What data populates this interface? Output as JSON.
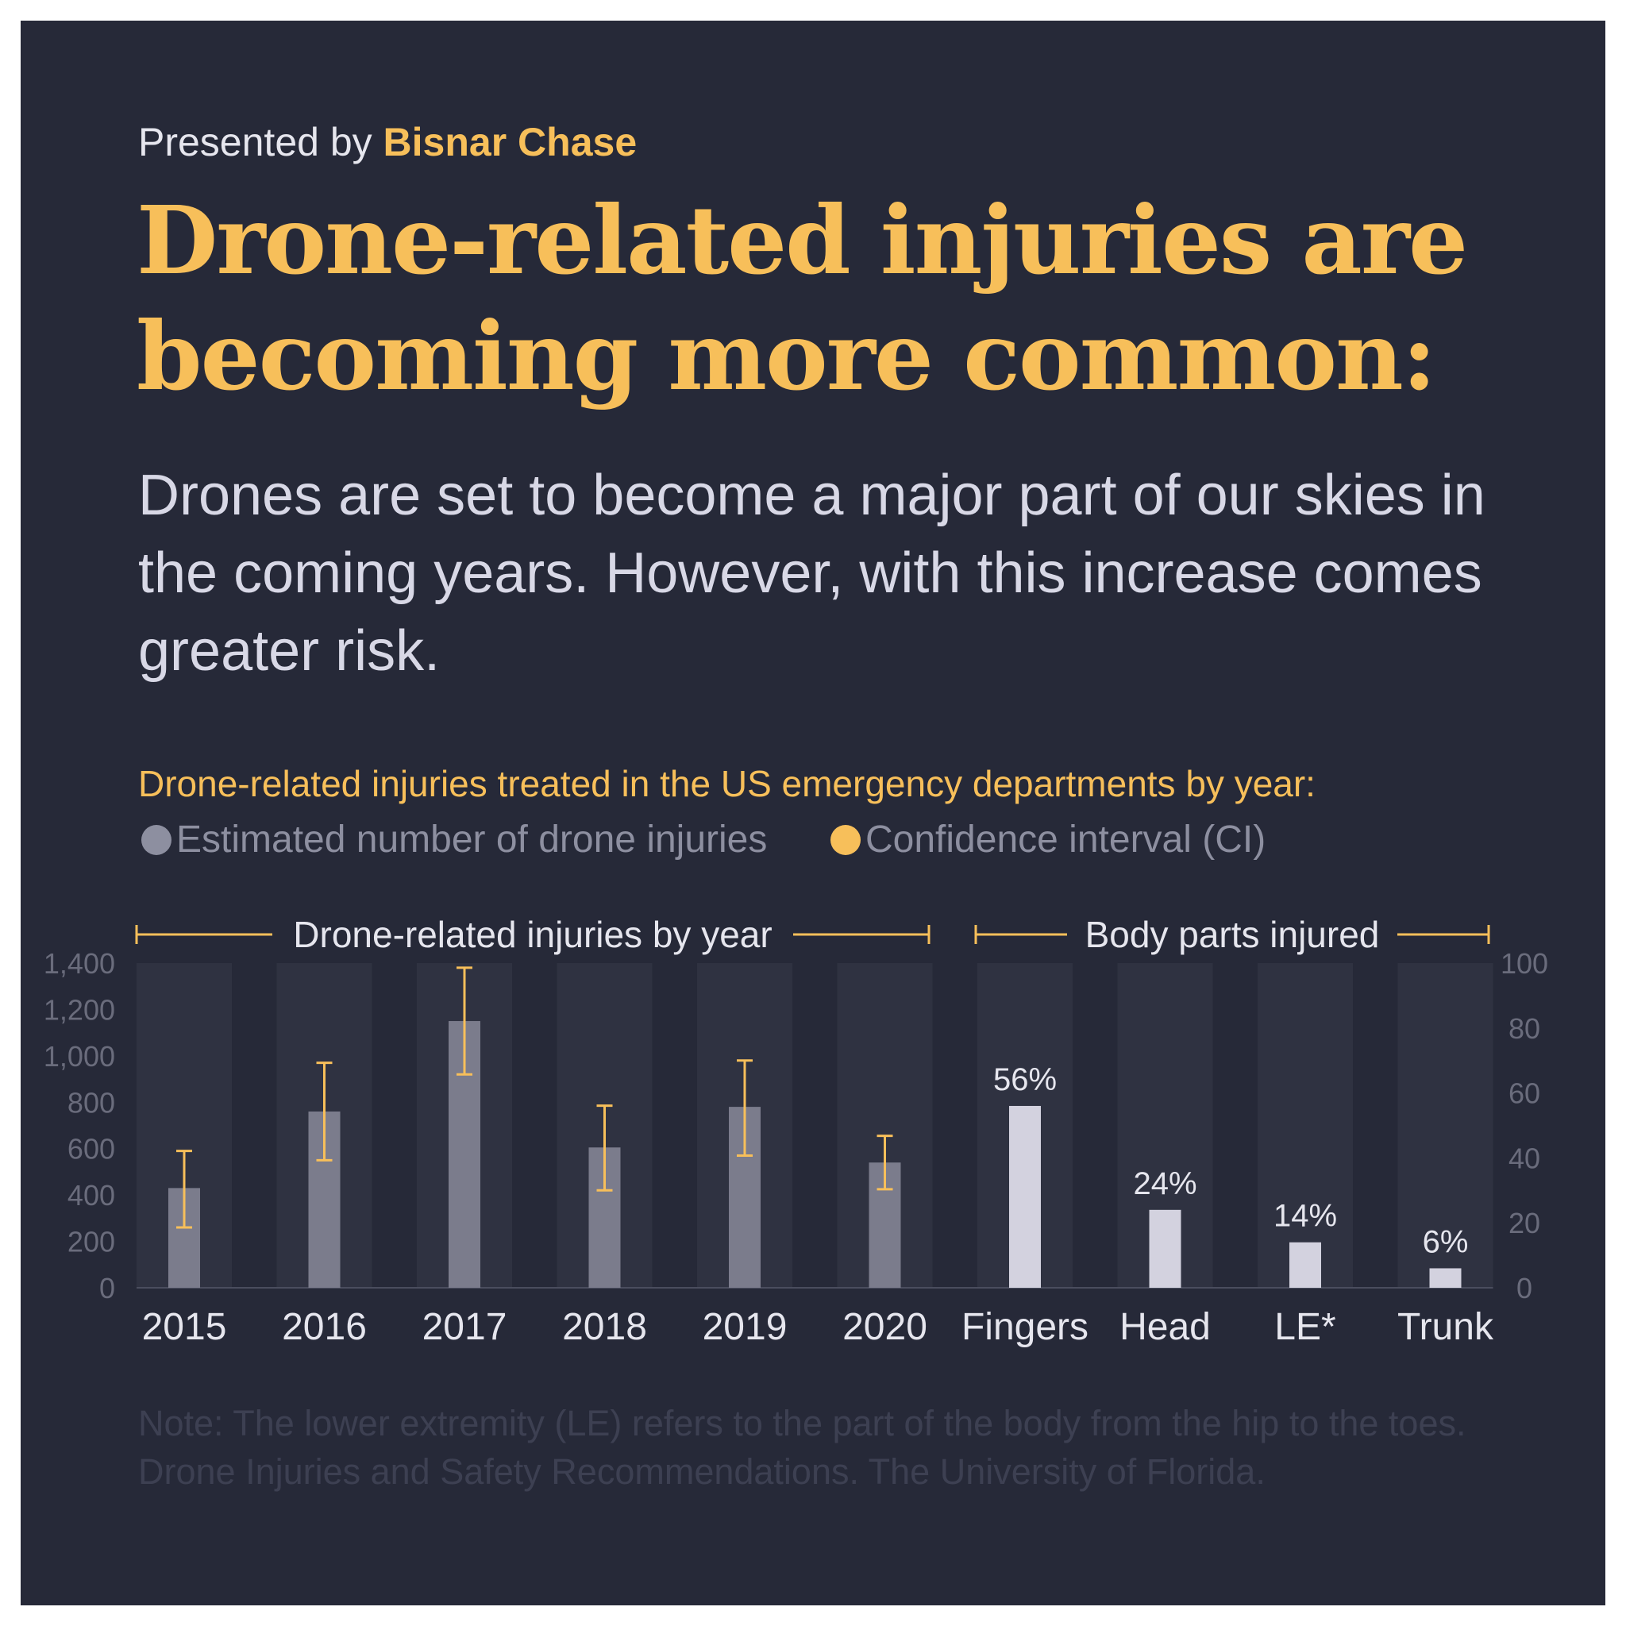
{
  "presented_prefix": "Presented by",
  "presented_brand": "Bisnar Chase",
  "headline": "Drone-related injuries are becoming more common:",
  "intro": "Drones are set to become a major part of our skies in the coming years. However, with this increase comes greater risk.",
  "chart_title": "Drone-related injuries treated in the US emergency departments by year:",
  "legend": {
    "estimate": "Estimated number of drone injuries",
    "ci": "Confidence interval (CI)"
  },
  "note_lines": [
    "Note: The lower extremity (LE) refers to the part of the body from the hip to the toes.",
    "Drone Injuries and Safety Recommendations. The University of Florida."
  ],
  "colors": {
    "background": "#262938",
    "panel": "#2f3241",
    "estimate_bar": "#7b7c8c",
    "ci": "#f7bf5a",
    "body_bar": "#d3d2df",
    "axis_text": "#6a6c7c",
    "label_text": "#e6e6ee"
  },
  "chart_data": [
    {
      "type": "bar",
      "title": "Drone-related injuries by year",
      "categories": [
        "2015",
        "2016",
        "2017",
        "2018",
        "2019",
        "2020"
      ],
      "values": [
        430,
        760,
        1150,
        605,
        780,
        540
      ],
      "ci_low": [
        260,
        550,
        920,
        420,
        570,
        425
      ],
      "ci_high": [
        590,
        970,
        1380,
        785,
        980,
        655
      ],
      "y_ticks": [
        "0",
        "200",
        "400",
        "600",
        "800",
        "1,000",
        "1,200",
        "1,400"
      ],
      "ylim": [
        0,
        1400
      ],
      "axis": "left",
      "grid": false
    },
    {
      "type": "bar",
      "title": "Body parts injured",
      "categories": [
        "Fingers",
        "Head",
        "LE*",
        "Trunk"
      ],
      "values": [
        56,
        24,
        14,
        6
      ],
      "value_labels": [
        "56%",
        "24%",
        "14%",
        "6%"
      ],
      "y_ticks": [
        "0",
        "20",
        "40",
        "60",
        "80",
        "100"
      ],
      "ylim": [
        0,
        100
      ],
      "axis": "right",
      "grid": false
    }
  ]
}
